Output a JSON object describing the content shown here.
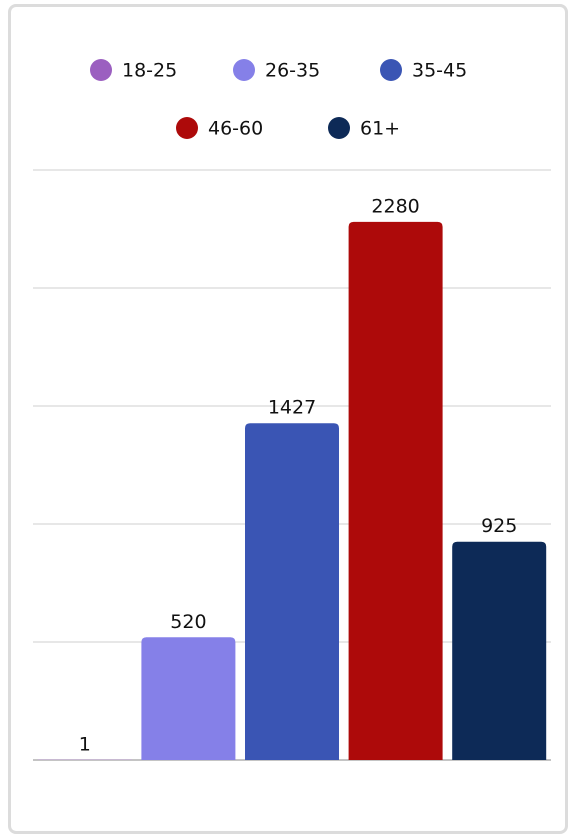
{
  "chart_data": {
    "type": "bar",
    "series": [
      {
        "name": "18-25",
        "color": "#9b5fc0",
        "values": [
          1
        ]
      },
      {
        "name": "26-35",
        "color": "#8580e8",
        "values": [
          520
        ]
      },
      {
        "name": "35-45",
        "color": "#3a55b4",
        "values": [
          1427
        ]
      },
      {
        "name": "46-60",
        "color": "#ad0a0a",
        "values": [
          2280
        ]
      },
      {
        "name": "61+",
        "color": "#0d2a57",
        "values": [
          925
        ]
      }
    ],
    "ylim": [
      0,
      2500
    ],
    "yticks": [
      0,
      500,
      1000,
      1500,
      2000,
      2500
    ],
    "grid": true,
    "legend": "top"
  }
}
